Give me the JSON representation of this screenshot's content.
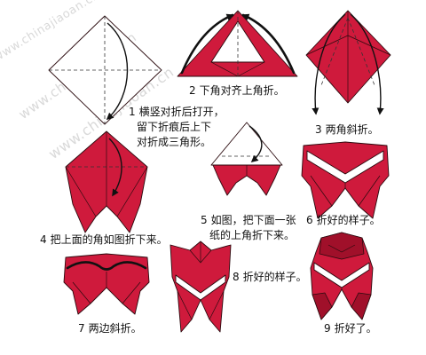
{
  "watermarks": [
    "www.chinajiaoan.cn",
    "www.chinajiaoan.cn",
    "www.chinajiaoan.cn"
  ],
  "steps": [
    {
      "number": "1",
      "lines": [
        "横竖对折后打开，",
        "留下折痕后上下",
        "对折成三角形。"
      ]
    },
    {
      "number": "2",
      "lines": [
        "下角对齐上角折。"
      ]
    },
    {
      "number": "3",
      "lines": [
        "两角斜折。"
      ]
    },
    {
      "number": "4",
      "lines": [
        "把上面的角如图折下来。"
      ]
    },
    {
      "number": "5",
      "lines": [
        "如图，把下面一张",
        "纸的上角折下来。"
      ]
    },
    {
      "number": "6",
      "lines": [
        "折好的样子。"
      ]
    },
    {
      "number": "7",
      "lines": [
        "两边斜折。"
      ]
    },
    {
      "number": "8",
      "lines": [
        "折好的样子。"
      ]
    },
    {
      "number": "9",
      "lines": [
        "折好了。"
      ]
    }
  ],
  "colors": {
    "paper_red": "#cf1a3c",
    "paper_red_dark": "#a0102a",
    "paper_white": "#ffffff",
    "outline": "#2a0a0e",
    "arrow": "#111111",
    "watermark": "#d9d9d9"
  }
}
